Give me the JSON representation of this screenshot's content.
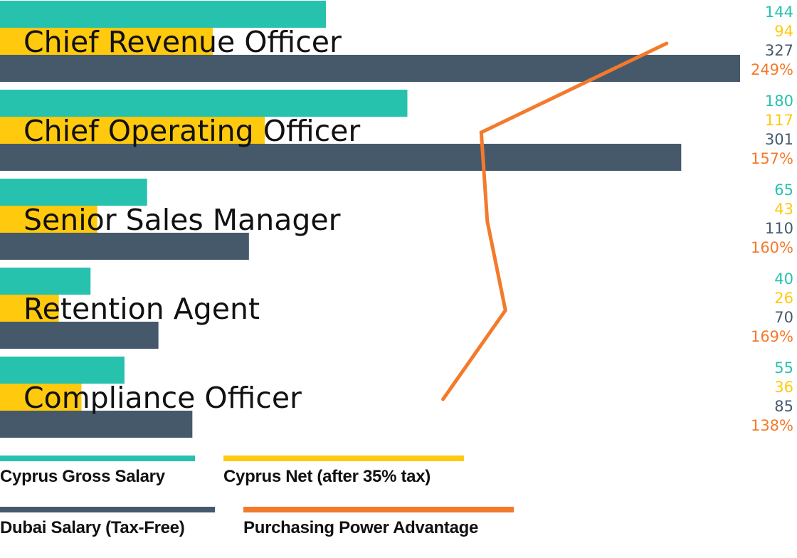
{
  "chart_data": {
    "type": "bar",
    "categories": [
      "Chief Revenue Officer",
      "Chief Operating Officer",
      "Senior Sales Manager",
      "Retention Agent",
      "Compliance Officer"
    ],
    "series": [
      {
        "name": "Cyprus Gross Salary",
        "values": [
          144,
          180,
          65,
          40,
          55
        ],
        "color": "#26c2ad",
        "labels": [
          "144",
          "180",
          "65",
          "40",
          "55"
        ]
      },
      {
        "name": "Cyprus Net (after 35% tax)",
        "values": [
          94,
          117,
          43,
          26,
          36
        ],
        "color": "#ffc90e",
        "labels": [
          "94",
          "117",
          "43",
          "26",
          "36"
        ]
      },
      {
        "name": "Dubai Salary (Tax-Free)",
        "values": [
          327,
          301,
          110,
          70,
          85
        ],
        "color": "#46596b",
        "labels": [
          "327",
          "301",
          "110",
          "70",
          "85"
        ]
      },
      {
        "name": "Purchasing Power Advantage",
        "type": "line",
        "values": [
          249,
          157,
          160,
          169,
          138
        ],
        "color": "#f47a2b",
        "labels": [
          "249%",
          "157%",
          "160%",
          "169%",
          "138%"
        ]
      }
    ],
    "legend_position": "bottom",
    "grid": false
  }
}
